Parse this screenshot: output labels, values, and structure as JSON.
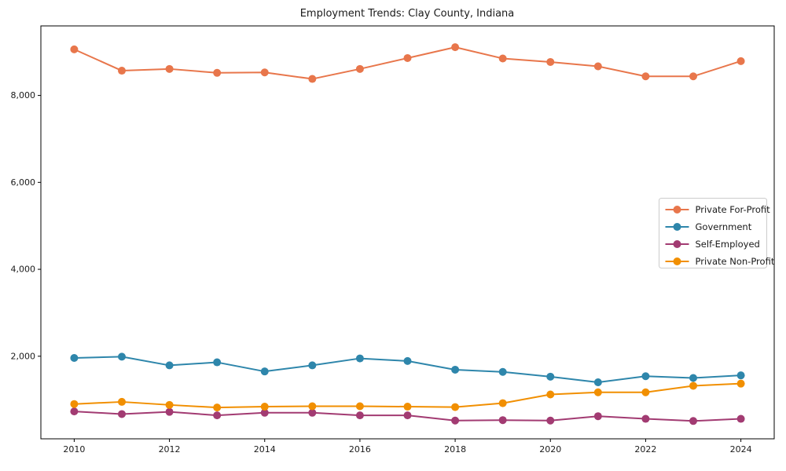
{
  "chart_data": {
    "type": "line",
    "title": "Employment Trends: Clay County, Indiana",
    "x": [
      2010,
      2011,
      2012,
      2013,
      2014,
      2015,
      2016,
      2017,
      2018,
      2019,
      2020,
      2021,
      2022,
      2023,
      2024
    ],
    "series": [
      {
        "name": "Private For-Profit",
        "color": "#e8764b",
        "values": [
          9060,
          8570,
          8610,
          8520,
          8530,
          8380,
          8610,
          8860,
          9110,
          8850,
          8770,
          8670,
          8440,
          8440,
          8790
        ]
      },
      {
        "name": "Government",
        "color": "#2e86ab",
        "values": [
          1960,
          1990,
          1790,
          1860,
          1650,
          1790,
          1950,
          1890,
          1690,
          1640,
          1530,
          1400,
          1540,
          1500,
          1560
        ]
      },
      {
        "name": "Self-Employed",
        "color": "#a23b72",
        "values": [
          730,
          670,
          720,
          640,
          700,
          700,
          640,
          640,
          520,
          530,
          520,
          620,
          560,
          510,
          560
        ]
      },
      {
        "name": "Private Non-Profit",
        "color": "#f18f01",
        "values": [
          900,
          950,
          880,
          820,
          840,
          850,
          850,
          840,
          830,
          920,
          1120,
          1170,
          1170,
          1320,
          1370
        ]
      }
    ],
    "xticks": [
      2010,
      2012,
      2014,
      2016,
      2018,
      2020,
      2022,
      2024
    ],
    "yticks": [
      2000,
      4000,
      6000,
      8000
    ],
    "ytick_labels": [
      "2,000",
      "4,000",
      "6,000",
      "8,000"
    ],
    "xlim": [
      2009.3,
      2024.7
    ],
    "ylim": [
      100,
      9600
    ],
    "grid": false,
    "legend": {
      "position": "inside-right-center",
      "background": "#ffffff",
      "border_color": "#cccccc"
    },
    "axis_color": "#000000",
    "background": "#ffffff"
  }
}
